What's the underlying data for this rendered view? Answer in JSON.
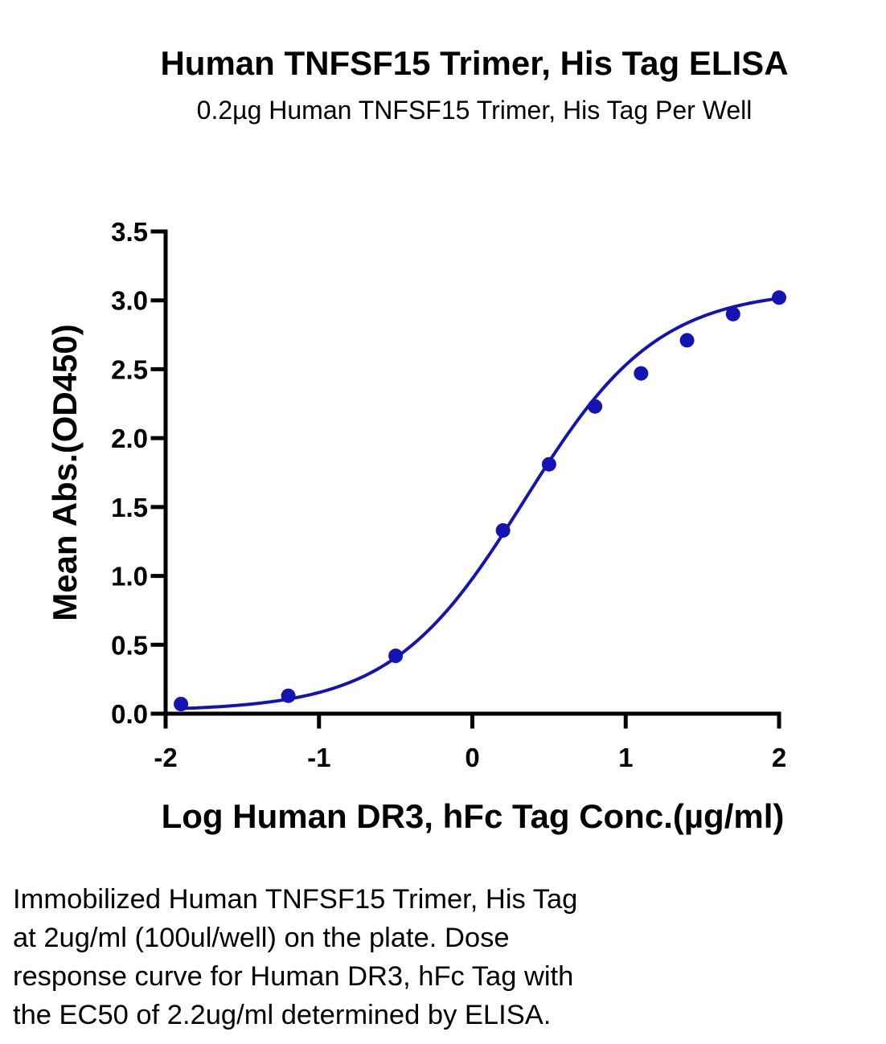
{
  "chart_data": {
    "type": "scatter",
    "title": "Human TNFSF15 Trimer, His Tag ELISA",
    "subtitle": "0.2µg Human TNFSF15 Trimer, His Tag Per Well",
    "xlabel": "Log Human DR3, hFc Tag Conc.(µg/ml)",
    "ylabel": "Mean Abs.(OD450)",
    "xlim": [
      -2,
      2
    ],
    "ylim": [
      0,
      3.5
    ],
    "x_ticks": [
      "-2",
      "-1",
      "0",
      "1",
      "2"
    ],
    "y_ticks": [
      "0.0",
      "0.5",
      "1.0",
      "1.5",
      "2.0",
      "2.5",
      "3.0",
      "3.5"
    ],
    "series": [
      {
        "x": [
          -1.9,
          -1.2,
          -0.5,
          0.2,
          0.5,
          0.8,
          1.1,
          1.4,
          1.7,
          2.0
        ],
        "y": [
          0.07,
          0.13,
          0.42,
          1.33,
          1.81,
          2.23,
          2.47,
          2.71,
          2.9,
          3.02
        ],
        "color": "#1414b4"
      }
    ],
    "fit_curve": {
      "model": "4PL",
      "bottom": 0.02,
      "top": 3.08,
      "log_ec50": 0.34,
      "hill": 1.0
    },
    "grid": false,
    "legend": "none"
  },
  "caption": [
    "Immobilized Human TNFSF15 Trimer, His Tag",
    "at 2ug/ml (100ul/well) on the plate. Dose",
    "response curve for Human DR3, hFc Tag with",
    "the EC50 of 2.2ug/ml determined by ELISA."
  ]
}
